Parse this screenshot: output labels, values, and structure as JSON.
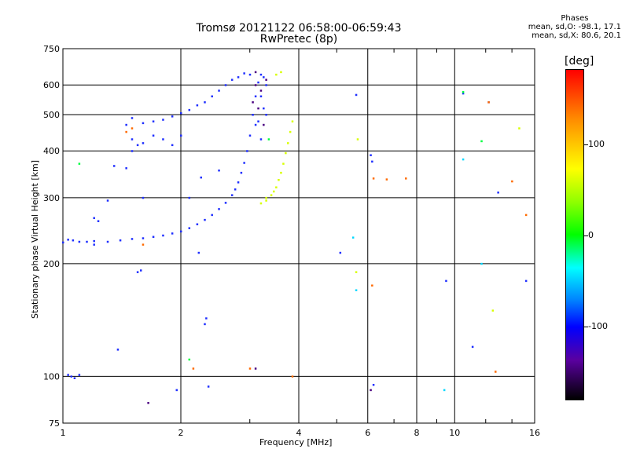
{
  "header": {
    "title_line1": "Tromsø 20121122 06:58:00-06:59:43",
    "title_line2": "RwPretec (8p)"
  },
  "phase_box": {
    "heading": "Phases",
    "line_o": "mean, sd,O: -98.1, 17.1",
    "line_x": "mean, sd,X:  80.6, 20.1"
  },
  "colorbar": {
    "title": "[deg]",
    "ticks": [
      "100",
      "0",
      "-100"
    ]
  },
  "chart_data": {
    "type": "scatter",
    "title": "Tromsø 20121122 06:58:00-06:59:43",
    "subtitle": "RwPretec (8p)",
    "xlabel": "Frequency [MHz]",
    "ylabel": "Stationary phase Virtual Height [km]",
    "x_scale": "log",
    "y_scale": "log",
    "xlim": [
      1,
      16
    ],
    "ylim": [
      75,
      750
    ],
    "x_ticks": [
      "1",
      "2",
      "4",
      "6",
      "8",
      "10",
      "16"
    ],
    "y_ticks": [
      "75",
      "100",
      "200",
      "300",
      "400",
      "500",
      "600",
      "750"
    ],
    "grid": true,
    "color_scale": {
      "label": "[deg]",
      "range": [
        -180,
        180
      ],
      "colors": [
        "#000000",
        "#5a00a0",
        "#0000ff",
        "#0080ff",
        "#00ffff",
        "#00ff00",
        "#90ff00",
        "#ffff00",
        "#ff8c00",
        "#ff0000"
      ]
    },
    "series": [
      {
        "color": "#1f2fff",
        "points": [
          [
            1.0,
            228
          ],
          [
            1.03,
            232
          ],
          [
            1.06,
            231
          ],
          [
            1.1,
            229
          ],
          [
            1.15,
            229
          ],
          [
            1.2,
            230
          ],
          [
            1.3,
            229
          ],
          [
            1.4,
            231
          ],
          [
            1.5,
            233
          ],
          [
            1.6,
            234
          ],
          [
            1.7,
            236
          ],
          [
            1.8,
            238
          ],
          [
            1.9,
            241
          ],
          [
            2.0,
            244
          ],
          [
            2.1,
            249
          ],
          [
            2.2,
            255
          ],
          [
            2.3,
            262
          ],
          [
            2.4,
            270
          ],
          [
            2.5,
            280
          ],
          [
            2.6,
            291
          ],
          [
            2.7,
            305
          ],
          [
            2.75,
            316
          ],
          [
            2.8,
            330
          ],
          [
            2.85,
            350
          ],
          [
            2.9,
            372
          ],
          [
            2.95,
            400
          ],
          [
            3.0,
            440
          ],
          [
            3.05,
            500
          ],
          [
            3.1,
            560
          ],
          [
            3.15,
            610
          ],
          [
            3.2,
            640
          ],
          [
            3.25,
            630
          ],
          [
            3.3,
            600
          ],
          [
            3.2,
            560
          ],
          [
            3.25,
            520
          ],
          [
            3.1,
            470
          ],
          [
            3.2,
            430
          ],
          [
            3.15,
            480
          ],
          [
            3.3,
            500
          ],
          [
            2.8,
            630
          ],
          [
            2.9,
            645
          ],
          [
            3.0,
            640
          ],
          [
            2.7,
            620
          ],
          [
            2.6,
            600
          ],
          [
            2.5,
            580
          ],
          [
            2.4,
            560
          ],
          [
            2.3,
            540
          ],
          [
            2.2,
            530
          ],
          [
            2.1,
            515
          ],
          [
            2.0,
            505
          ],
          [
            1.9,
            495
          ],
          [
            1.8,
            485
          ],
          [
            1.7,
            480
          ],
          [
            1.6,
            475
          ],
          [
            1.5,
            490
          ],
          [
            1.45,
            470
          ],
          [
            1.5,
            430
          ],
          [
            1.6,
            420
          ],
          [
            1.7,
            440
          ],
          [
            1.8,
            430
          ],
          [
            1.9,
            415
          ],
          [
            2.0,
            440
          ],
          [
            1.55,
            415
          ],
          [
            1.5,
            400
          ],
          [
            1.45,
            360
          ],
          [
            1.35,
            365
          ],
          [
            1.3,
            295
          ],
          [
            1.6,
            300
          ],
          [
            1.2,
            225
          ],
          [
            2.1,
            300
          ],
          [
            2.25,
            340
          ],
          [
            2.5,
            355
          ],
          [
            1.55,
            190
          ],
          [
            1.58,
            192
          ],
          [
            1.03,
            101
          ],
          [
            1.05,
            100
          ],
          [
            1.07,
            99
          ],
          [
            1.1,
            101
          ],
          [
            1.38,
            118
          ],
          [
            2.22,
            214
          ],
          [
            2.3,
            138
          ],
          [
            2.32,
            143
          ],
          [
            5.1,
            214
          ],
          [
            5.6,
            565
          ],
          [
            6.2,
            95
          ],
          [
            6.1,
            390
          ],
          [
            6.15,
            375
          ],
          [
            9.5,
            180
          ],
          [
            10.5,
            570
          ],
          [
            11.1,
            120
          ],
          [
            12.2,
            540
          ],
          [
            12.9,
            310
          ],
          [
            15.2,
            180
          ],
          [
            1.23,
            260
          ],
          [
            1.2,
            265
          ],
          [
            1.95,
            92
          ],
          [
            2.35,
            94
          ]
        ]
      },
      {
        "color": "#d8ff00",
        "points": [
          [
            3.2,
            290
          ],
          [
            3.3,
            295
          ],
          [
            3.4,
            305
          ],
          [
            3.5,
            320
          ],
          [
            3.55,
            335
          ],
          [
            3.6,
            350
          ],
          [
            3.65,
            370
          ],
          [
            3.7,
            395
          ],
          [
            3.75,
            420
          ],
          [
            3.8,
            450
          ],
          [
            3.85,
            480
          ],
          [
            3.5,
            640
          ],
          [
            3.6,
            650
          ],
          [
            3.3,
            300
          ],
          [
            3.45,
            312
          ],
          [
            5.6,
            190
          ],
          [
            5.65,
            430
          ],
          [
            12.5,
            150
          ],
          [
            14.6,
            460
          ]
        ]
      },
      {
        "color": "#ff6a00",
        "points": [
          [
            1.45,
            450
          ],
          [
            1.5,
            460
          ],
          [
            1.6,
            225
          ],
          [
            2.15,
            105
          ],
          [
            3.0,
            105
          ],
          [
            3.85,
            100
          ],
          [
            6.2,
            338
          ],
          [
            6.7,
            336
          ],
          [
            7.5,
            338
          ],
          [
            12.7,
            103
          ],
          [
            14.0,
            332
          ],
          [
            15.2,
            270
          ],
          [
            6.15,
            175
          ],
          [
            12.2,
            540
          ]
        ]
      },
      {
        "color": "#00ff40",
        "points": [
          [
            2.1,
            111
          ],
          [
            10.5,
            575
          ],
          [
            11.7,
            425
          ],
          [
            1.1,
            370
          ],
          [
            3.35,
            430
          ]
        ]
      },
      {
        "color": "#00d8ff",
        "points": [
          [
            5.5,
            235
          ],
          [
            11.7,
            200
          ],
          [
            9.4,
            92
          ],
          [
            10.5,
            380
          ],
          [
            5.6,
            170
          ]
        ]
      },
      {
        "color": "#4a0080",
        "points": [
          [
            3.1,
            600
          ],
          [
            3.2,
            580
          ],
          [
            3.3,
            620
          ],
          [
            3.05,
            540
          ],
          [
            3.25,
            470
          ],
          [
            3.1,
            650
          ],
          [
            3.15,
            520
          ],
          [
            1.65,
            85
          ],
          [
            3.1,
            105
          ],
          [
            6.1,
            92
          ]
        ]
      }
    ]
  }
}
